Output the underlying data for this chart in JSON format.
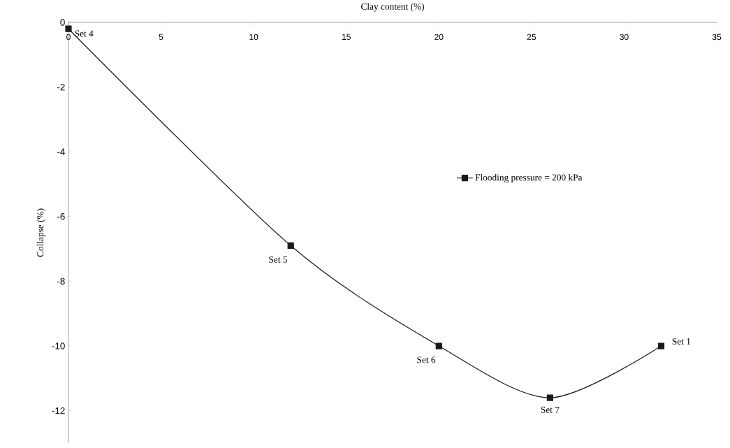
{
  "chart_data": {
    "type": "line",
    "xlabel": "Clay content (%)",
    "ylabel": "Collapse (%)",
    "x": [
      0,
      12,
      20,
      26,
      32
    ],
    "series": [
      {
        "name": "Flooding pressure = 200 kPa",
        "color": "#1a1a1a",
        "values": [
          -0.2,
          -6.9,
          -10,
          -11.6,
          -10
        ]
      }
    ],
    "xlim": [
      0,
      35
    ],
    "ylim": [
      -13,
      0
    ],
    "xticks": [
      0,
      5,
      10,
      15,
      20,
      25,
      30,
      35
    ],
    "yticks": [
      -12,
      -10,
      -8,
      -6,
      -4,
      -2,
      0
    ],
    "marker": "square",
    "line_style": "solid",
    "grid": false,
    "legend": "right",
    "annotations": [
      {
        "text": "Set 4",
        "x": 0,
        "y": -0.2
      },
      {
        "text": "Set 5",
        "x": 12,
        "y": -6.9
      },
      {
        "text": "Set 6",
        "x": 20,
        "y": -10
      },
      {
        "text": "Set 7",
        "x": 26,
        "y": -11.6
      },
      {
        "text": "Set 1",
        "x": 32,
        "y": -10
      }
    ]
  }
}
